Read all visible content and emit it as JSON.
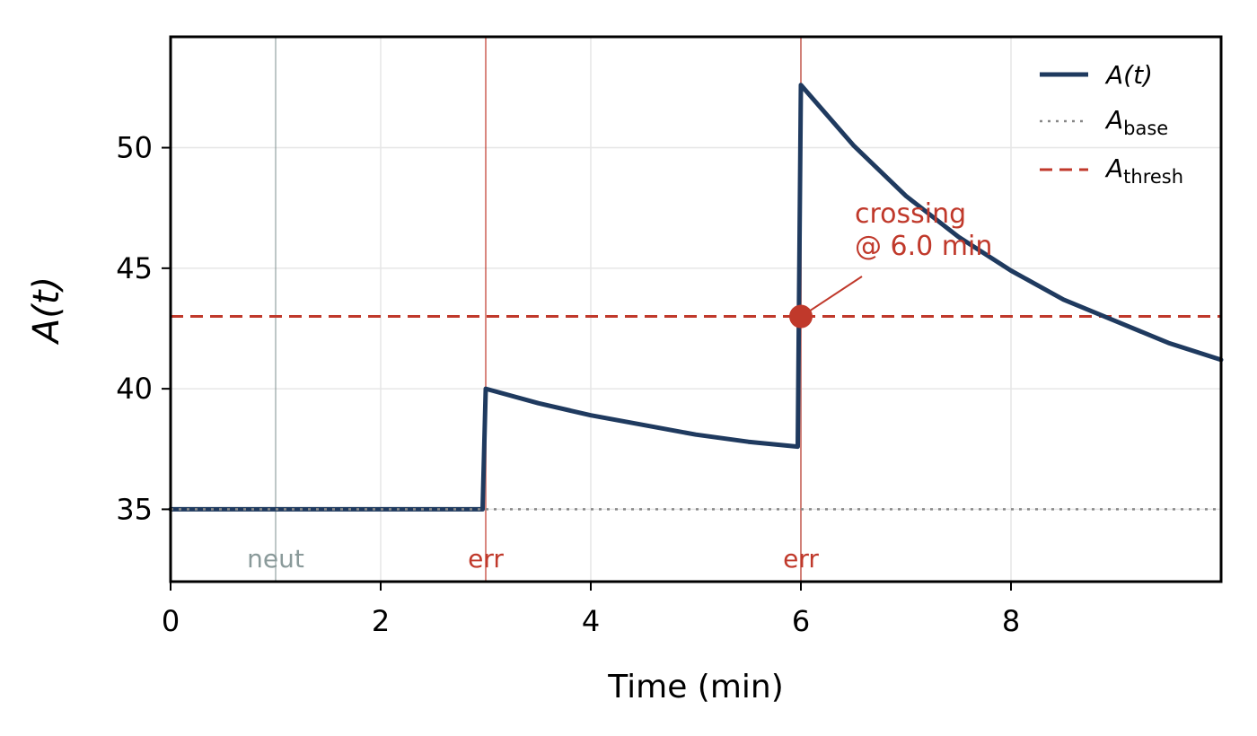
{
  "chart_data": {
    "type": "line",
    "xlabel": "Time (min)",
    "ylabel": "A(t)",
    "xlim": [
      0,
      10
    ],
    "ylim": [
      32,
      54.6
    ],
    "xticks": [
      0,
      2,
      4,
      6,
      8
    ],
    "yticks": [
      35,
      40,
      45,
      50
    ],
    "grid": true,
    "legend_position": "top-right",
    "series": [
      {
        "name": "A(t)",
        "style": "solid",
        "color": "#1f3a5f",
        "x": [
          0,
          2.97,
          3.0,
          3.5,
          4.0,
          4.5,
          5.0,
          5.5,
          5.97,
          6.0,
          6.5,
          7.0,
          7.5,
          8.0,
          8.5,
          9.0,
          9.5,
          10.0
        ],
        "y": [
          35,
          35,
          40,
          39.4,
          38.9,
          38.5,
          38.1,
          37.8,
          37.6,
          52.6,
          50.1,
          48.0,
          46.3,
          44.9,
          43.7,
          42.8,
          41.9,
          41.2
        ]
      }
    ],
    "reference_lines": [
      {
        "name": "A",
        "subscript": "base",
        "y": 35,
        "style": "dotted",
        "color": "#888888"
      },
      {
        "name": "A",
        "subscript": "thresh",
        "y": 43,
        "style": "dashed",
        "color": "#c0392b"
      }
    ],
    "event_lines": [
      {
        "x": 1,
        "label": "neut",
        "color": "#8a9a9a"
      },
      {
        "x": 3,
        "label": "err",
        "color": "#c0392b"
      },
      {
        "x": 6,
        "label": "err",
        "color": "#c0392b"
      }
    ],
    "annotation": {
      "lines": [
        "crossing",
        "@ 6.0 min"
      ],
      "point": [
        6.0,
        43.0
      ],
      "color": "#c0392b"
    }
  }
}
